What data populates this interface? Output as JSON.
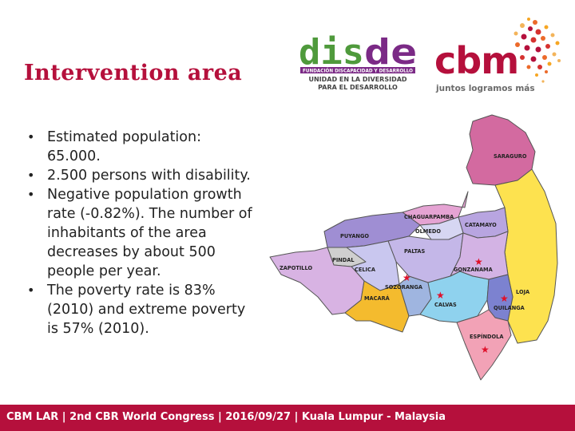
{
  "slide": {
    "title": "Intervention area",
    "bullets": [
      "Estimated population: 65.000.",
      "2.500 persons with disability.",
      "Negative population growth rate (-0.82%). The number of inhabitants of the area decreases by about 500 people per year.",
      "The poverty rate is 83% (2010) and extreme poverty is 57% (2010)."
    ]
  },
  "logos": {
    "disde": {
      "name": "disde",
      "banner": "FUNDACIÓN DISCAPACIDAD Y DESARROLLO",
      "tagline_1": "UNIDAD EN LA DIVERSIDAD",
      "tagline_2": "PARA EL DESARROLLO"
    },
    "cbm": {
      "name": "cbm",
      "tagline": "juntos logramos más"
    }
  },
  "map": {
    "regions": [
      "SARAGURO",
      "CHAGUARPAMBA",
      "OLMEDO",
      "CATAMAYO",
      "PUYANGO",
      "PALTAS",
      "PINDAL",
      "ZAPOTILLO",
      "CELICA",
      "GONZANAMA",
      "SOZORANGA",
      "LOJA",
      "MACARÁ",
      "CALVAS",
      "QUILANGA",
      "ESPÍNDOLA"
    ],
    "marker_icon": "star-icon"
  },
  "footer": {
    "text": "CBM LAR | 2nd CBR World Congress | 2016/09/27 | Kuala Lumpur - Malaysia"
  },
  "colors": {
    "brand": "#b5103c",
    "disde_green": "#4f9a3c",
    "disde_purple": "#7b2a86",
    "marker": "#e0102a"
  }
}
